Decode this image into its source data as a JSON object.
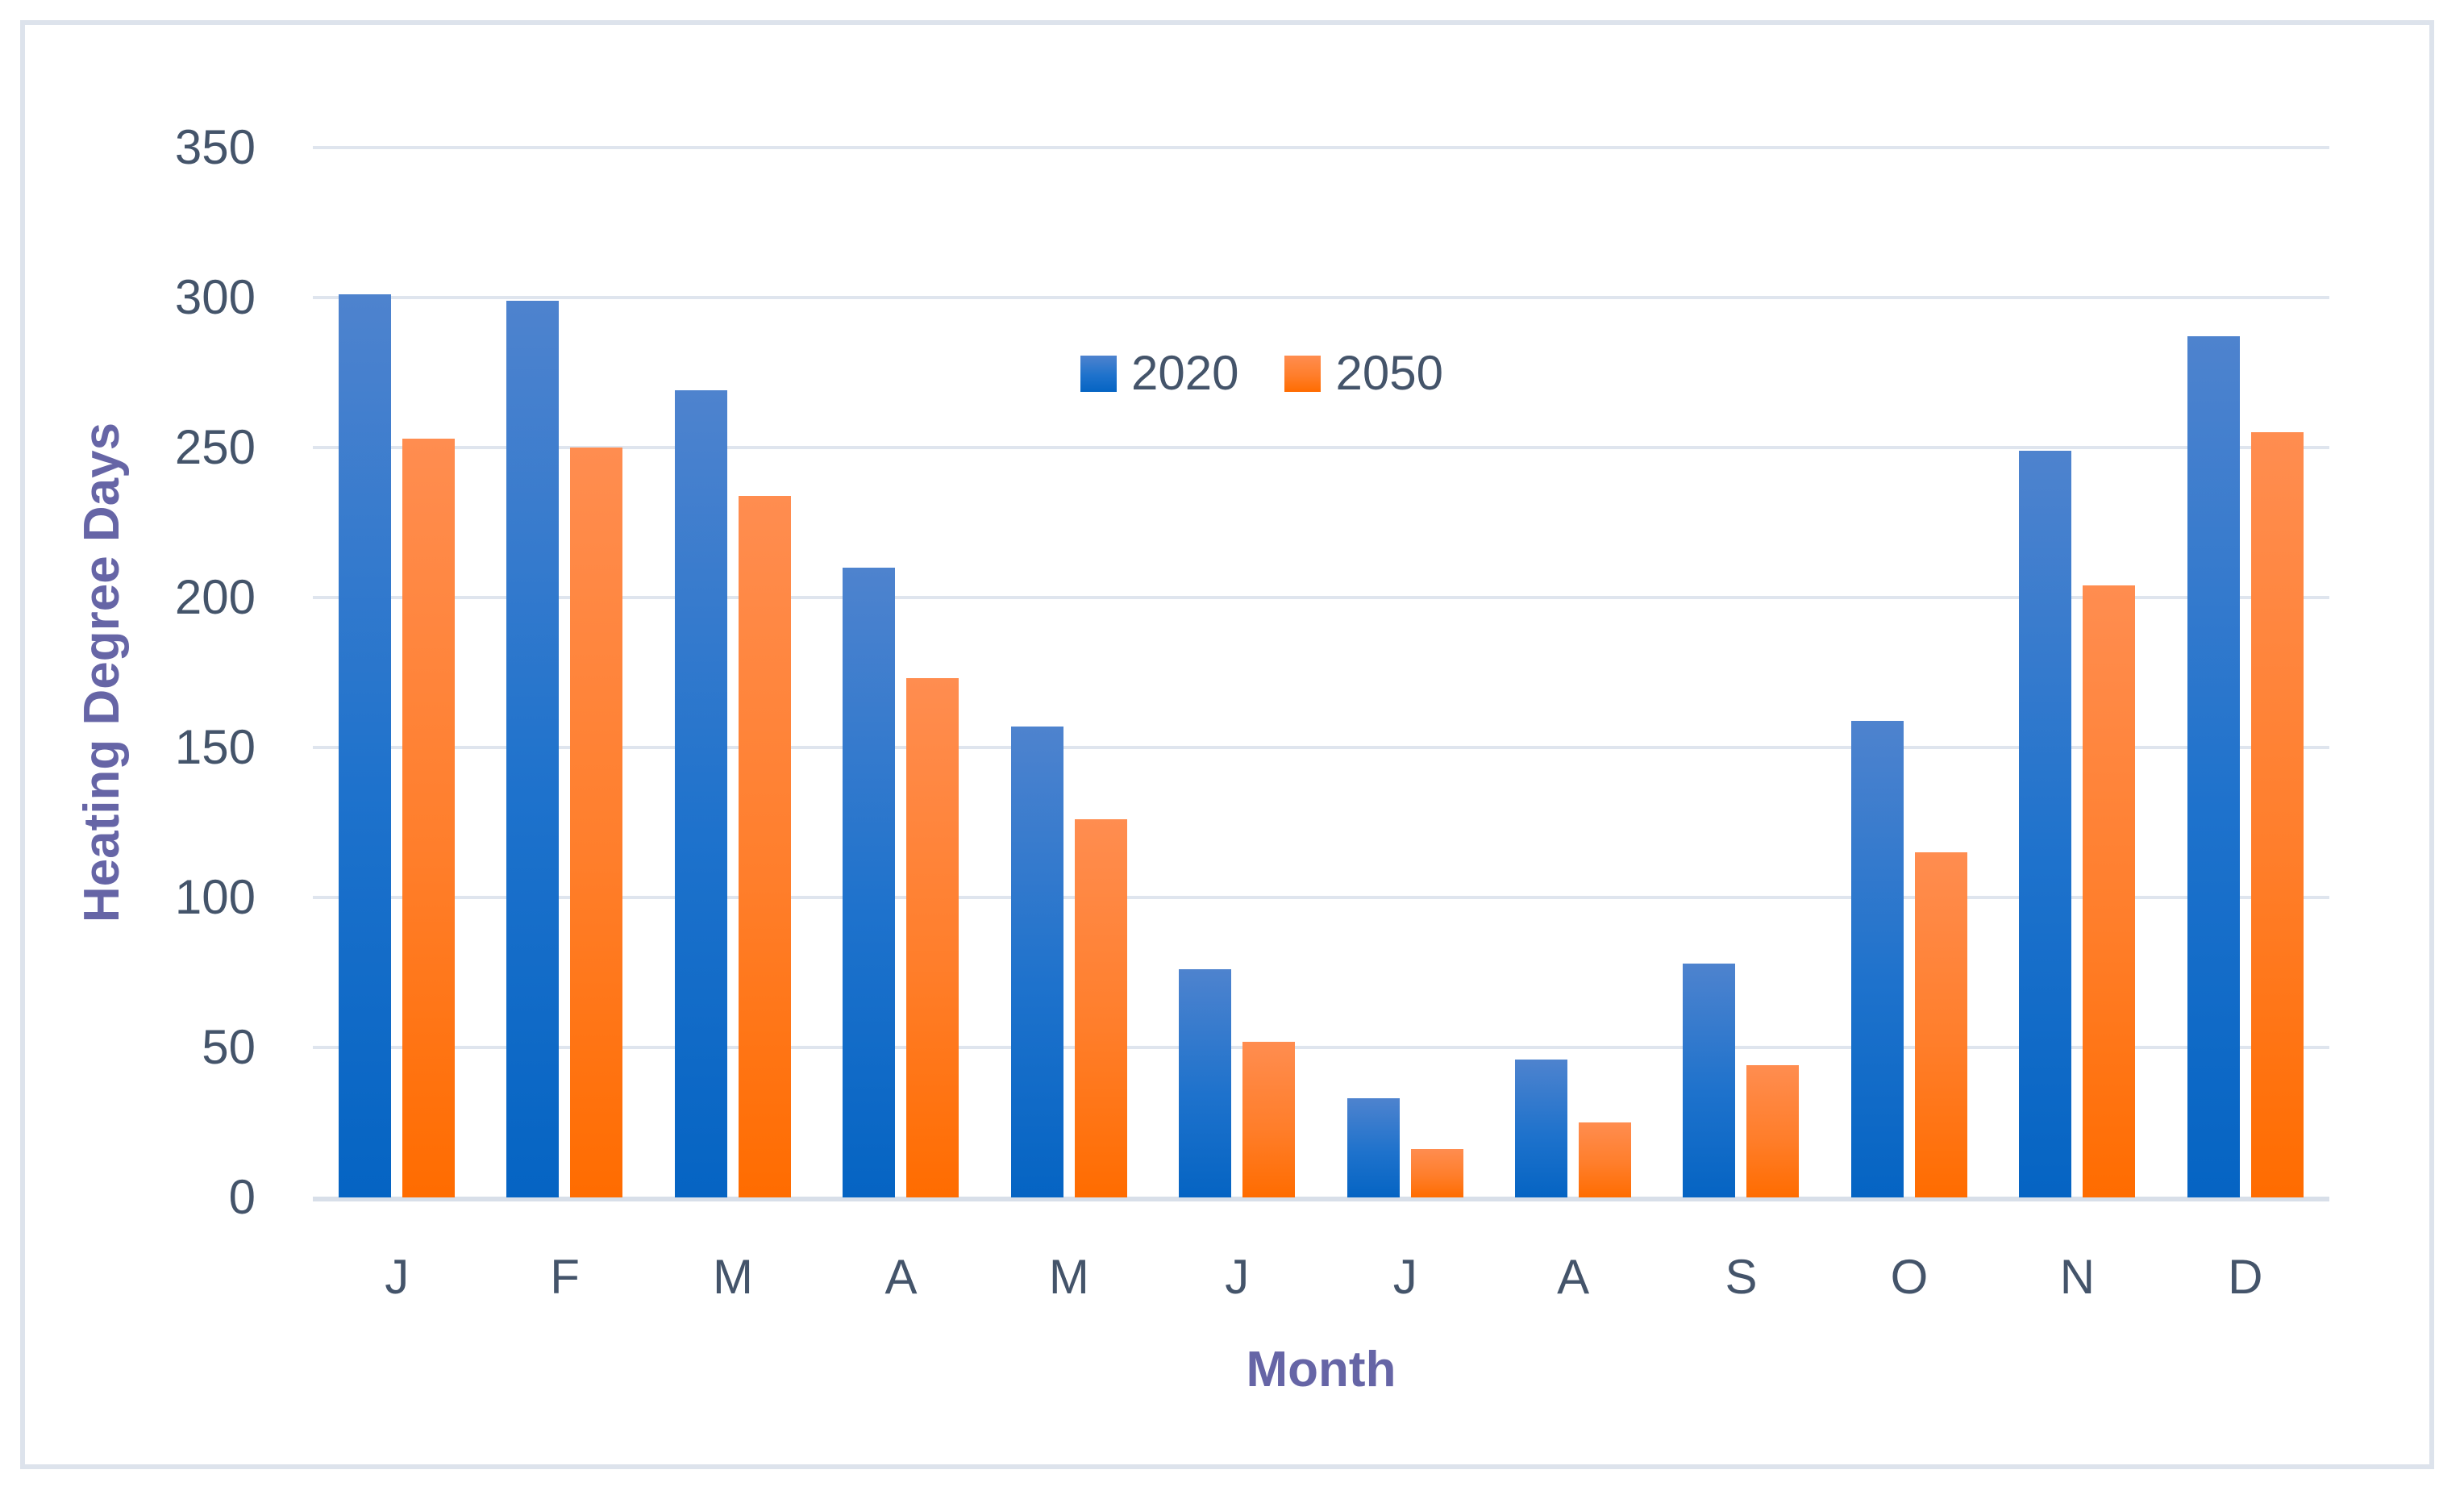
{
  "chart_data": {
    "type": "bar",
    "title": "",
    "categories": [
      "J",
      "F",
      "M",
      "A",
      "M",
      "J",
      "J",
      "A",
      "S",
      "O",
      "N",
      "D"
    ],
    "series": [
      {
        "name": "2020",
        "color_top": "#4e83ce",
        "color_mid": "#1e72cc",
        "color_bottom": "#0564c3",
        "values": [
          301,
          299,
          269,
          210,
          157,
          76,
          33,
          46,
          78,
          159,
          249,
          287
        ]
      },
      {
        "name": "2050",
        "color_top": "#ff8d50",
        "color_mid": "#ff7e2b",
        "color_bottom": "#ff6c00",
        "values": [
          253,
          250,
          234,
          173,
          126,
          52,
          16,
          25,
          44,
          115,
          204,
          255
        ]
      }
    ],
    "xlabel": "Month",
    "ylabel": "Heating Degree Days",
    "ylim": [
      0,
      350
    ],
    "yticks": [
      0,
      50,
      100,
      150,
      200,
      250,
      300,
      350
    ],
    "grid": true,
    "legend_position": "top-center"
  },
  "colors": {
    "tick_text": "#44546a",
    "axis_title_text": "#6665a6",
    "gridline": "#dfe5ee",
    "baseline": "#d8dfe9",
    "frame_border": "#dde3ec",
    "background": "#ffffff"
  }
}
